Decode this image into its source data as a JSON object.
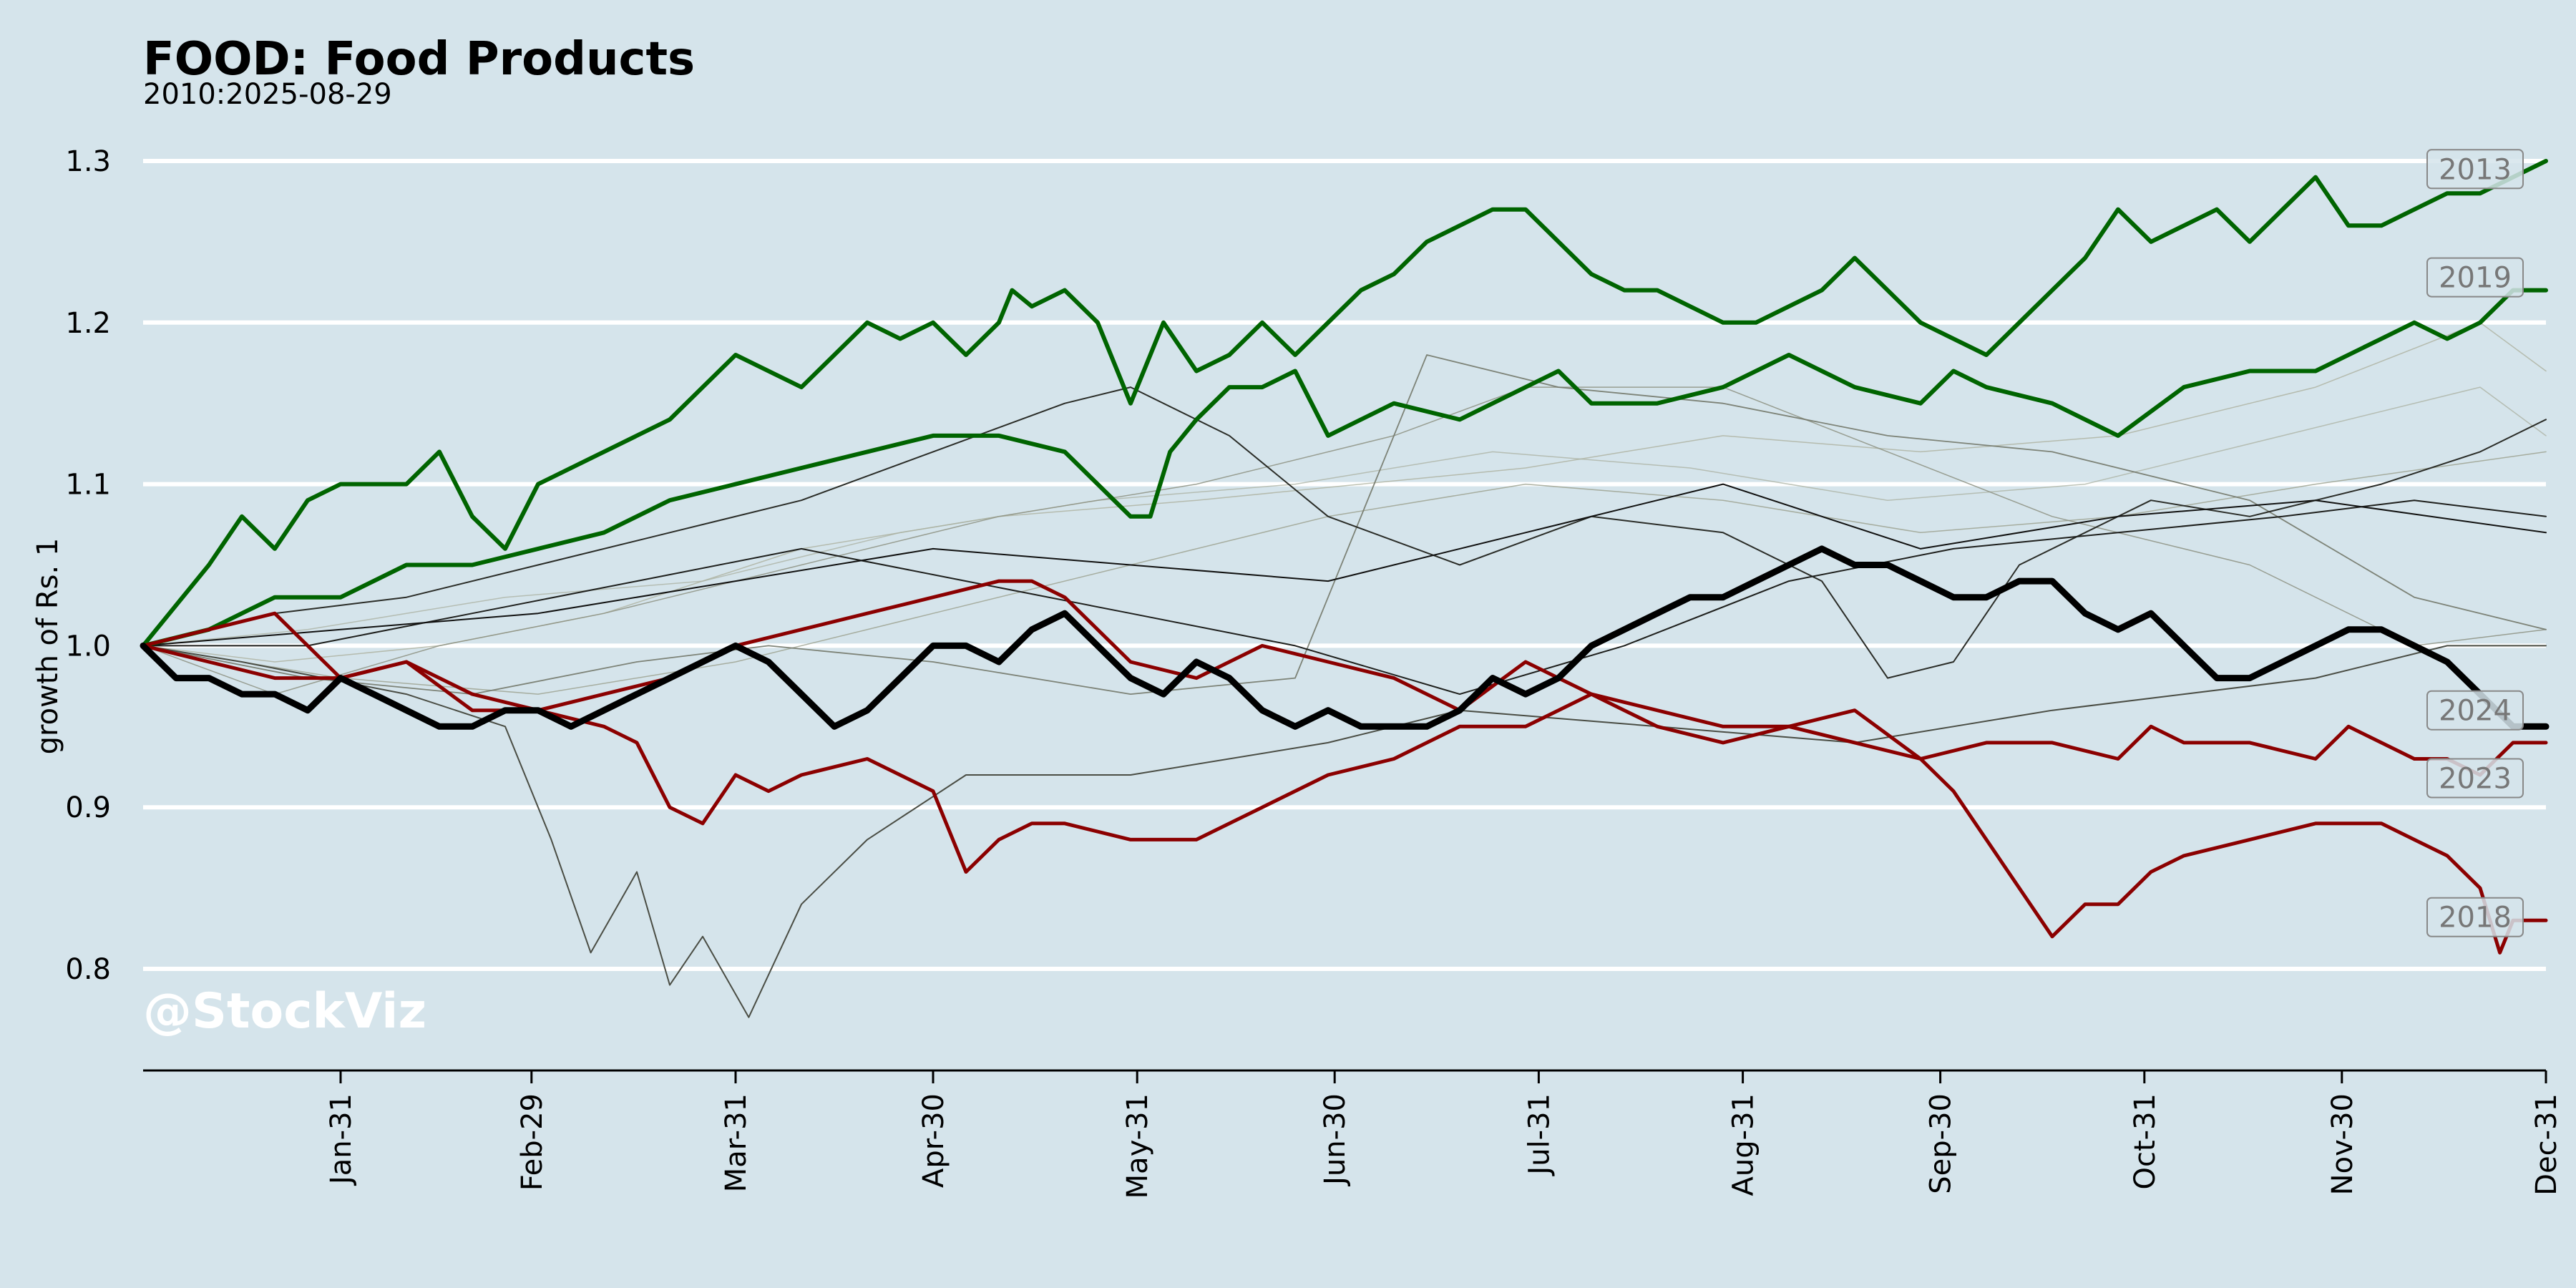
{
  "chart_data": {
    "type": "line",
    "title": "FOOD: Food Products",
    "subtitle": "2010:2025-08-29",
    "ylabel": "growth of Rs. 1",
    "xlabel": "",
    "watermark": "@StockViz",
    "ylim": [
      0.735,
      1.3
    ],
    "yticks": [
      0.8,
      0.9,
      1.0,
      1.1,
      1.2,
      1.3
    ],
    "ytick_labels": [
      "0.8",
      "0.9",
      "1.0",
      "1.1",
      "1.2",
      "1.3"
    ],
    "xlim": [
      0,
      365
    ],
    "xticks": [
      {
        "day": 30,
        "label": "Jan-31"
      },
      {
        "day": 59,
        "label": "Feb-29"
      },
      {
        "day": 90,
        "label": "Mar-31"
      },
      {
        "day": 120,
        "label": "Apr-30"
      },
      {
        "day": 151,
        "label": "May-31"
      },
      {
        "day": 181,
        "label": "Jun-30"
      },
      {
        "day": 212,
        "label": "Jul-31"
      },
      {
        "day": 243,
        "label": "Aug-31"
      },
      {
        "day": 273,
        "label": "Sep-30"
      },
      {
        "day": 304,
        "label": "Oct-31"
      },
      {
        "day": 334,
        "label": "Nov-30"
      },
      {
        "day": 365,
        "label": "Dec-31"
      }
    ],
    "grid": {
      "y": true,
      "x": false
    },
    "colors": {
      "background": "#d5e4eb",
      "grid": "#ffffff",
      "current": "#000000",
      "up": "#006400",
      "down": "#8b0000"
    },
    "series": [
      {
        "name": "",
        "highlight": false,
        "color": "#a9ae9a",
        "width": 1.5,
        "opacity": 0.75,
        "x": [
          0,
          20,
          45,
          70,
          100,
          130,
          160,
          185,
          210,
          240,
          270,
          300,
          330,
          355,
          365
        ],
        "y": [
          1.0,
          0.99,
          1.0,
          1.02,
          1.06,
          1.08,
          1.09,
          1.1,
          1.11,
          1.13,
          1.12,
          1.13,
          1.16,
          1.2,
          1.17
        ]
      },
      {
        "name": "",
        "highlight": false,
        "color": "#aab0a0",
        "width": 1.5,
        "opacity": 0.75,
        "x": [
          0,
          25,
          55,
          85,
          115,
          145,
          175,
          205,
          235,
          265,
          295,
          325,
          355,
          365
        ],
        "y": [
          1.0,
          1.01,
          1.03,
          1.04,
          1.07,
          1.09,
          1.1,
          1.12,
          1.11,
          1.09,
          1.1,
          1.13,
          1.16,
          1.13
        ]
      },
      {
        "name": "",
        "highlight": false,
        "color": "#9a9f8c",
        "width": 1.5,
        "opacity": 0.8,
        "x": [
          0,
          30,
          60,
          90,
          120,
          150,
          180,
          210,
          240,
          270,
          300,
          330,
          365
        ],
        "y": [
          1.0,
          0.98,
          0.97,
          0.99,
          1.02,
          1.05,
          1.08,
          1.1,
          1.09,
          1.07,
          1.08,
          1.1,
          1.12
        ]
      },
      {
        "name": "",
        "highlight": false,
        "color": "#8d9282",
        "width": 1.5,
        "opacity": 0.85,
        "x": [
          0,
          20,
          45,
          70,
          100,
          130,
          160,
          190,
          210,
          240,
          265,
          290,
          320,
          345,
          365
        ],
        "y": [
          1.0,
          0.97,
          1.0,
          1.02,
          1.05,
          1.08,
          1.1,
          1.13,
          1.16,
          1.16,
          1.12,
          1.08,
          1.05,
          1.0,
          1.01
        ]
      },
      {
        "name": "",
        "highlight": false,
        "color": "#73786a",
        "width": 1.8,
        "opacity": 0.9,
        "x": [
          0,
          25,
          50,
          75,
          95,
          120,
          150,
          175,
          195,
          215,
          240,
          265,
          290,
          320,
          345,
          365
        ],
        "y": [
          1.0,
          0.98,
          0.97,
          0.99,
          1.0,
          0.99,
          0.97,
          0.98,
          1.18,
          1.16,
          1.15,
          1.13,
          1.12,
          1.09,
          1.03,
          1.01
        ]
      },
      {
        "name": "",
        "highlight": false,
        "color": "#4a4d44",
        "width": 2,
        "opacity": 1,
        "x": [
          0,
          15,
          40,
          55,
          62,
          68,
          75,
          80,
          85,
          92,
          100,
          110,
          125,
          150,
          180,
          200,
          230,
          260,
          275,
          290,
          310,
          330,
          350,
          365
        ],
        "y": [
          1.0,
          0.99,
          0.97,
          0.95,
          0.88,
          0.81,
          0.86,
          0.79,
          0.82,
          0.77,
          0.84,
          0.88,
          0.92,
          0.92,
          0.94,
          0.96,
          0.95,
          0.94,
          0.95,
          0.96,
          0.97,
          0.98,
          1.0,
          1.0
        ]
      },
      {
        "name": "",
        "highlight": false,
        "color": "#2a2c27",
        "width": 2,
        "opacity": 1,
        "x": [
          0,
          20,
          40,
          60,
          80,
          100,
          120,
          140,
          150,
          165,
          180,
          200,
          220,
          240,
          255,
          265,
          275,
          285,
          295,
          305,
          320,
          340,
          355,
          365
        ],
        "y": [
          1.0,
          1.02,
          1.03,
          1.05,
          1.07,
          1.09,
          1.12,
          1.15,
          1.16,
          1.13,
          1.08,
          1.05,
          1.08,
          1.07,
          1.04,
          0.98,
          0.99,
          1.05,
          1.07,
          1.09,
          1.08,
          1.1,
          1.12,
          1.14
        ]
      },
      {
        "name": "",
        "highlight": false,
        "color": "#1e1f1c",
        "width": 2,
        "opacity": 1,
        "x": [
          0,
          25,
          50,
          75,
          100,
          125,
          150,
          175,
          200,
          225,
          250,
          275,
          300,
          325,
          345,
          365
        ],
        "y": [
          1.0,
          1.0,
          1.02,
          1.04,
          1.06,
          1.04,
          1.02,
          1.0,
          0.97,
          1.0,
          1.04,
          1.06,
          1.07,
          1.08,
          1.09,
          1.08
        ]
      },
      {
        "name": "",
        "highlight": false,
        "color": "#111110",
        "width": 2,
        "opacity": 1,
        "x": [
          0,
          30,
          60,
          90,
          120,
          150,
          180,
          210,
          240,
          270,
          300,
          330,
          365
        ],
        "y": [
          1.0,
          1.01,
          1.02,
          1.04,
          1.06,
          1.05,
          1.04,
          1.07,
          1.1,
          1.06,
          1.08,
          1.09,
          1.07
        ]
      },
      {
        "name": "2013",
        "highlight": true,
        "color": "#006400",
        "width": 6,
        "x": [
          0,
          10,
          15,
          20,
          25,
          30,
          40,
          45,
          50,
          55,
          60,
          70,
          80,
          85,
          90,
          100,
          105,
          110,
          115,
          120,
          125,
          130,
          132,
          135,
          140,
          145,
          150,
          153,
          155,
          160,
          165,
          170,
          175,
          180,
          185,
          190,
          195,
          200,
          205,
          210,
          215,
          220,
          225,
          230,
          240,
          245,
          250,
          255,
          260,
          265,
          270,
          275,
          280,
          285,
          290,
          295,
          300,
          305,
          310,
          315,
          320,
          325,
          330,
          335,
          340,
          345,
          350,
          355,
          360,
          365
        ],
        "y": [
          1.0,
          1.05,
          1.08,
          1.06,
          1.09,
          1.1,
          1.1,
          1.12,
          1.08,
          1.06,
          1.1,
          1.12,
          1.14,
          1.16,
          1.18,
          1.16,
          1.18,
          1.2,
          1.19,
          1.2,
          1.18,
          1.2,
          1.22,
          1.21,
          1.22,
          1.2,
          1.15,
          1.18,
          1.2,
          1.17,
          1.18,
          1.2,
          1.18,
          1.2,
          1.22,
          1.23,
          1.25,
          1.26,
          1.27,
          1.27,
          1.25,
          1.23,
          1.22,
          1.22,
          1.2,
          1.2,
          1.21,
          1.22,
          1.24,
          1.22,
          1.2,
          1.19,
          1.18,
          1.2,
          1.22,
          1.24,
          1.27,
          1.25,
          1.26,
          1.27,
          1.25,
          1.27,
          1.29,
          1.26,
          1.26,
          1.27,
          1.28,
          1.28,
          1.29,
          1.3
        ]
      },
      {
        "name": "2019",
        "highlight": true,
        "color": "#006400",
        "width": 6,
        "x": [
          0,
          10,
          15,
          20,
          30,
          40,
          50,
          60,
          70,
          80,
          90,
          100,
          110,
          120,
          130,
          140,
          150,
          153,
          156,
          160,
          165,
          170,
          175,
          180,
          190,
          200,
          210,
          215,
          220,
          230,
          240,
          250,
          255,
          260,
          270,
          275,
          280,
          290,
          300,
          310,
          320,
          330,
          340,
          345,
          350,
          355,
          360,
          365
        ],
        "y": [
          1.0,
          1.01,
          1.02,
          1.03,
          1.03,
          1.05,
          1.05,
          1.06,
          1.07,
          1.09,
          1.1,
          1.11,
          1.12,
          1.13,
          1.13,
          1.12,
          1.08,
          1.08,
          1.12,
          1.14,
          1.16,
          1.16,
          1.17,
          1.13,
          1.15,
          1.14,
          1.16,
          1.17,
          1.15,
          1.15,
          1.16,
          1.18,
          1.17,
          1.16,
          1.15,
          1.17,
          1.16,
          1.15,
          1.13,
          1.16,
          1.17,
          1.17,
          1.19,
          1.2,
          1.19,
          1.2,
          1.22,
          1.22
        ]
      },
      {
        "name": "2023",
        "highlight": true,
        "color": "#8b0000",
        "width": 5,
        "x": [
          0,
          10,
          20,
          30,
          40,
          50,
          60,
          70,
          80,
          90,
          100,
          110,
          120,
          130,
          135,
          140,
          150,
          160,
          170,
          180,
          190,
          200,
          210,
          215,
          220,
          225,
          230,
          240,
          250,
          260,
          270,
          280,
          290,
          300,
          305,
          310,
          320,
          330,
          335,
          340,
          345,
          350,
          355,
          360,
          365
        ],
        "y": [
          1.0,
          1.01,
          1.02,
          0.98,
          0.99,
          0.97,
          0.96,
          0.97,
          0.98,
          1.0,
          1.01,
          1.02,
          1.03,
          1.04,
          1.04,
          1.03,
          0.99,
          0.98,
          1.0,
          0.99,
          0.98,
          0.96,
          0.99,
          0.98,
          0.97,
          0.96,
          0.95,
          0.94,
          0.95,
          0.94,
          0.93,
          0.94,
          0.94,
          0.93,
          0.95,
          0.94,
          0.94,
          0.93,
          0.95,
          0.94,
          0.93,
          0.93,
          0.92,
          0.94,
          0.94
        ]
      },
      {
        "name": "2018",
        "highlight": true,
        "color": "#8b0000",
        "width": 5,
        "x": [
          0,
          10,
          20,
          30,
          40,
          50,
          60,
          70,
          75,
          80,
          85,
          90,
          95,
          100,
          110,
          120,
          125,
          130,
          135,
          140,
          150,
          160,
          170,
          180,
          190,
          200,
          210,
          220,
          230,
          240,
          250,
          260,
          270,
          275,
          280,
          285,
          290,
          295,
          300,
          305,
          310,
          320,
          330,
          340,
          345,
          350,
          355,
          358,
          360,
          365
        ],
        "y": [
          1.0,
          0.99,
          0.98,
          0.98,
          0.99,
          0.96,
          0.96,
          0.95,
          0.94,
          0.9,
          0.89,
          0.92,
          0.91,
          0.92,
          0.93,
          0.91,
          0.86,
          0.88,
          0.89,
          0.89,
          0.88,
          0.88,
          0.9,
          0.92,
          0.93,
          0.95,
          0.95,
          0.97,
          0.96,
          0.95,
          0.95,
          0.96,
          0.93,
          0.91,
          0.88,
          0.85,
          0.82,
          0.84,
          0.84,
          0.86,
          0.87,
          0.88,
          0.89,
          0.89,
          0.88,
          0.87,
          0.85,
          0.81,
          0.83,
          0.83
        ]
      },
      {
        "name": "2024",
        "highlight": true,
        "current": true,
        "color": "#000000",
        "width": 9,
        "x": [
          0,
          5,
          10,
          15,
          20,
          25,
          30,
          35,
          40,
          45,
          50,
          55,
          60,
          65,
          70,
          75,
          80,
          85,
          90,
          95,
          100,
          105,
          110,
          115,
          120,
          125,
          130,
          135,
          140,
          145,
          150,
          155,
          160,
          165,
          170,
          175,
          180,
          185,
          190,
          195,
          200,
          205,
          210,
          215,
          220,
          225,
          230,
          235,
          240,
          245,
          250,
          255,
          260,
          265,
          270,
          275,
          280,
          285,
          290,
          295,
          300,
          305,
          310,
          315,
          320,
          325,
          330,
          335,
          340,
          345,
          350,
          355,
          360,
          365
        ],
        "y": [
          1.0,
          0.98,
          0.98,
          0.97,
          0.97,
          0.96,
          0.98,
          0.97,
          0.96,
          0.95,
          0.95,
          0.96,
          0.96,
          0.95,
          0.96,
          0.97,
          0.98,
          0.99,
          1.0,
          0.99,
          0.97,
          0.95,
          0.96,
          0.98,
          1.0,
          1.0,
          0.99,
          1.01,
          1.02,
          1.0,
          0.98,
          0.97,
          0.99,
          0.98,
          0.96,
          0.95,
          0.96,
          0.95,
          0.95,
          0.95,
          0.96,
          0.98,
          0.97,
          0.98,
          1.0,
          1.01,
          1.02,
          1.03,
          1.03,
          1.04,
          1.05,
          1.06,
          1.05,
          1.05,
          1.04,
          1.03,
          1.03,
          1.04,
          1.04,
          1.02,
          1.01,
          1.02,
          1.0,
          0.98,
          0.98,
          0.99,
          1.0,
          1.01,
          1.01,
          1.0,
          0.99,
          0.97,
          0.95,
          0.95
        ]
      }
    ],
    "year_labels": [
      {
        "text": "2013",
        "y": 1.295
      },
      {
        "text": "2019",
        "y": 1.228
      },
      {
        "text": "2024",
        "y": 0.96
      },
      {
        "text": "2023",
        "y": 0.918
      },
      {
        "text": "2018",
        "y": 0.832
      }
    ]
  }
}
